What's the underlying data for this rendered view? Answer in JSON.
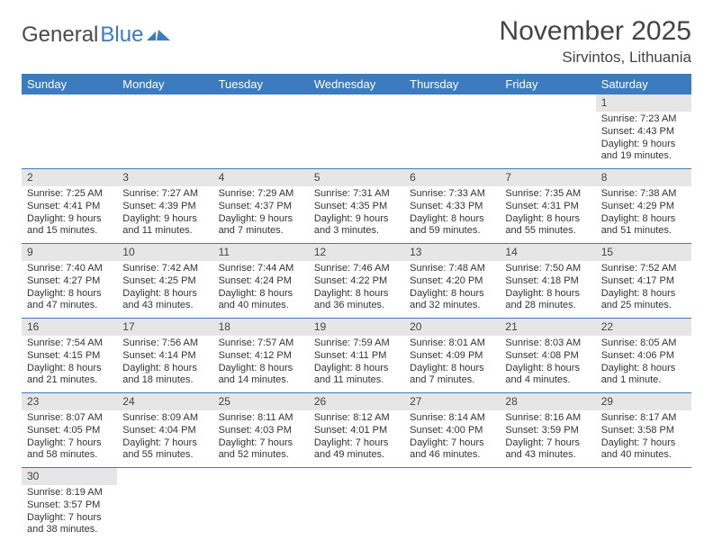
{
  "logo": {
    "part1": "General",
    "part2": "Blue"
  },
  "title": "November 2025",
  "location": "Sirvintos, Lithuania",
  "colors": {
    "header_bg": "#3b7bbf",
    "header_text": "#ffffff",
    "daynum_bg": "#e6e6e6",
    "border": "#3b7bbf",
    "text": "#333333"
  },
  "weekdays": [
    "Sunday",
    "Monday",
    "Tuesday",
    "Wednesday",
    "Thursday",
    "Friday",
    "Saturday"
  ],
  "weeks": [
    [
      null,
      null,
      null,
      null,
      null,
      null,
      {
        "n": "1",
        "sr": "Sunrise: 7:23 AM",
        "ss": "Sunset: 4:43 PM",
        "dl": "Daylight: 9 hours and 19 minutes."
      }
    ],
    [
      {
        "n": "2",
        "sr": "Sunrise: 7:25 AM",
        "ss": "Sunset: 4:41 PM",
        "dl": "Daylight: 9 hours and 15 minutes."
      },
      {
        "n": "3",
        "sr": "Sunrise: 7:27 AM",
        "ss": "Sunset: 4:39 PM",
        "dl": "Daylight: 9 hours and 11 minutes."
      },
      {
        "n": "4",
        "sr": "Sunrise: 7:29 AM",
        "ss": "Sunset: 4:37 PM",
        "dl": "Daylight: 9 hours and 7 minutes."
      },
      {
        "n": "5",
        "sr": "Sunrise: 7:31 AM",
        "ss": "Sunset: 4:35 PM",
        "dl": "Daylight: 9 hours and 3 minutes."
      },
      {
        "n": "6",
        "sr": "Sunrise: 7:33 AM",
        "ss": "Sunset: 4:33 PM",
        "dl": "Daylight: 8 hours and 59 minutes."
      },
      {
        "n": "7",
        "sr": "Sunrise: 7:35 AM",
        "ss": "Sunset: 4:31 PM",
        "dl": "Daylight: 8 hours and 55 minutes."
      },
      {
        "n": "8",
        "sr": "Sunrise: 7:38 AM",
        "ss": "Sunset: 4:29 PM",
        "dl": "Daylight: 8 hours and 51 minutes."
      }
    ],
    [
      {
        "n": "9",
        "sr": "Sunrise: 7:40 AM",
        "ss": "Sunset: 4:27 PM",
        "dl": "Daylight: 8 hours and 47 minutes."
      },
      {
        "n": "10",
        "sr": "Sunrise: 7:42 AM",
        "ss": "Sunset: 4:25 PM",
        "dl": "Daylight: 8 hours and 43 minutes."
      },
      {
        "n": "11",
        "sr": "Sunrise: 7:44 AM",
        "ss": "Sunset: 4:24 PM",
        "dl": "Daylight: 8 hours and 40 minutes."
      },
      {
        "n": "12",
        "sr": "Sunrise: 7:46 AM",
        "ss": "Sunset: 4:22 PM",
        "dl": "Daylight: 8 hours and 36 minutes."
      },
      {
        "n": "13",
        "sr": "Sunrise: 7:48 AM",
        "ss": "Sunset: 4:20 PM",
        "dl": "Daylight: 8 hours and 32 minutes."
      },
      {
        "n": "14",
        "sr": "Sunrise: 7:50 AM",
        "ss": "Sunset: 4:18 PM",
        "dl": "Daylight: 8 hours and 28 minutes."
      },
      {
        "n": "15",
        "sr": "Sunrise: 7:52 AM",
        "ss": "Sunset: 4:17 PM",
        "dl": "Daylight: 8 hours and 25 minutes."
      }
    ],
    [
      {
        "n": "16",
        "sr": "Sunrise: 7:54 AM",
        "ss": "Sunset: 4:15 PM",
        "dl": "Daylight: 8 hours and 21 minutes."
      },
      {
        "n": "17",
        "sr": "Sunrise: 7:56 AM",
        "ss": "Sunset: 4:14 PM",
        "dl": "Daylight: 8 hours and 18 minutes."
      },
      {
        "n": "18",
        "sr": "Sunrise: 7:57 AM",
        "ss": "Sunset: 4:12 PM",
        "dl": "Daylight: 8 hours and 14 minutes."
      },
      {
        "n": "19",
        "sr": "Sunrise: 7:59 AM",
        "ss": "Sunset: 4:11 PM",
        "dl": "Daylight: 8 hours and 11 minutes."
      },
      {
        "n": "20",
        "sr": "Sunrise: 8:01 AM",
        "ss": "Sunset: 4:09 PM",
        "dl": "Daylight: 8 hours and 7 minutes."
      },
      {
        "n": "21",
        "sr": "Sunrise: 8:03 AM",
        "ss": "Sunset: 4:08 PM",
        "dl": "Daylight: 8 hours and 4 minutes."
      },
      {
        "n": "22",
        "sr": "Sunrise: 8:05 AM",
        "ss": "Sunset: 4:06 PM",
        "dl": "Daylight: 8 hours and 1 minute."
      }
    ],
    [
      {
        "n": "23",
        "sr": "Sunrise: 8:07 AM",
        "ss": "Sunset: 4:05 PM",
        "dl": "Daylight: 7 hours and 58 minutes."
      },
      {
        "n": "24",
        "sr": "Sunrise: 8:09 AM",
        "ss": "Sunset: 4:04 PM",
        "dl": "Daylight: 7 hours and 55 minutes."
      },
      {
        "n": "25",
        "sr": "Sunrise: 8:11 AM",
        "ss": "Sunset: 4:03 PM",
        "dl": "Daylight: 7 hours and 52 minutes."
      },
      {
        "n": "26",
        "sr": "Sunrise: 8:12 AM",
        "ss": "Sunset: 4:01 PM",
        "dl": "Daylight: 7 hours and 49 minutes."
      },
      {
        "n": "27",
        "sr": "Sunrise: 8:14 AM",
        "ss": "Sunset: 4:00 PM",
        "dl": "Daylight: 7 hours and 46 minutes."
      },
      {
        "n": "28",
        "sr": "Sunrise: 8:16 AM",
        "ss": "Sunset: 3:59 PM",
        "dl": "Daylight: 7 hours and 43 minutes."
      },
      {
        "n": "29",
        "sr": "Sunrise: 8:17 AM",
        "ss": "Sunset: 3:58 PM",
        "dl": "Daylight: 7 hours and 40 minutes."
      }
    ],
    [
      {
        "n": "30",
        "sr": "Sunrise: 8:19 AM",
        "ss": "Sunset: 3:57 PM",
        "dl": "Daylight: 7 hours and 38 minutes."
      },
      null,
      null,
      null,
      null,
      null,
      null
    ]
  ]
}
